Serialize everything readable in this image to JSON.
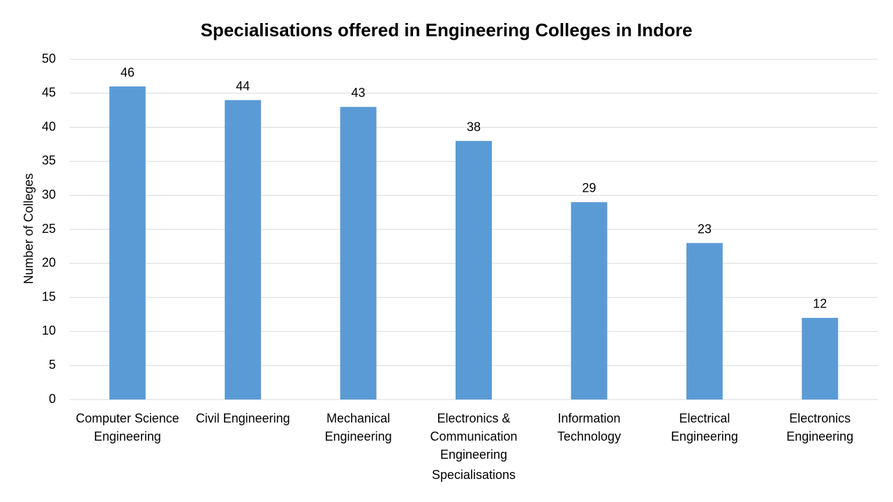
{
  "chart_data": {
    "type": "bar",
    "title": "Specialisations offered in Engineering Colleges in Indore",
    "x_label": "Specialisations",
    "y_label": "Number of Colleges",
    "categories": [
      "Computer Science Engineering",
      "Civil Engineering",
      "Mechanical Engineering",
      "Electronics & Communication Engineering",
      "Information Technology",
      "Electrical Engineering",
      "Electronics Engineering"
    ],
    "values": [
      46,
      44,
      43,
      38,
      29,
      23,
      12
    ],
    "color": "#5b9bd5",
    "ylim": [
      0,
      50
    ],
    "yticks": [
      0,
      5,
      10,
      15,
      20,
      25,
      30,
      35,
      40,
      45,
      50
    ],
    "grid": true
  }
}
